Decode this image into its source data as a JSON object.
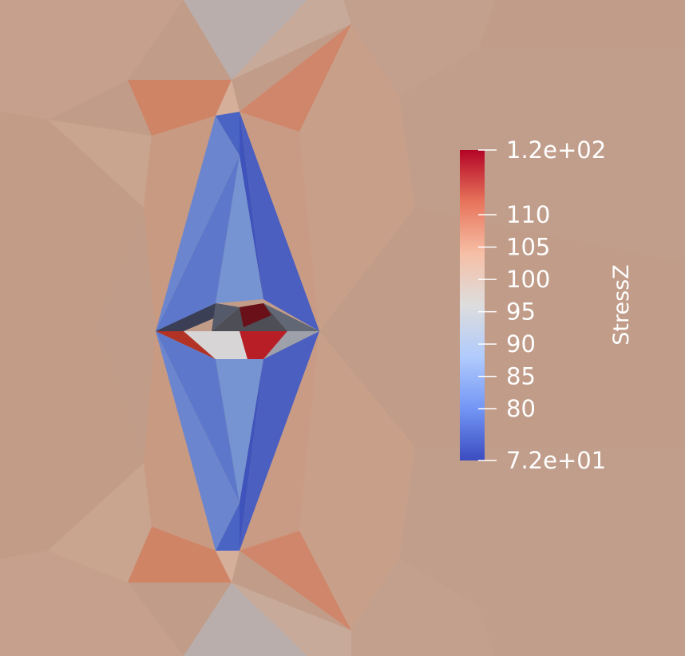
{
  "scalar_bar": {
    "title": "StressZ",
    "range": [
      72,
      120
    ],
    "labels": [
      {
        "value": 120,
        "text": "1.2e+02"
      },
      {
        "value": 110,
        "text": "110"
      },
      {
        "value": 105,
        "text": "105"
      },
      {
        "value": 100,
        "text": "100"
      },
      {
        "value": 95,
        "text": "95"
      },
      {
        "value": 90,
        "text": "90"
      },
      {
        "value": 85,
        "text": "85"
      },
      {
        "value": 80,
        "text": "80"
      },
      {
        "value": 72,
        "text": "7.2e+01"
      }
    ],
    "colormap": "cool-to-warm",
    "colormap_stops": [
      "#3b4cc0",
      "#7396f5",
      "#b0cbfc",
      "#dddddd",
      "#f6bfa6",
      "#e7745b",
      "#b40426"
    ],
    "label_color": "#ffffff"
  },
  "mesh": {
    "field": "StressZ",
    "background_color": "#c19d89"
  }
}
